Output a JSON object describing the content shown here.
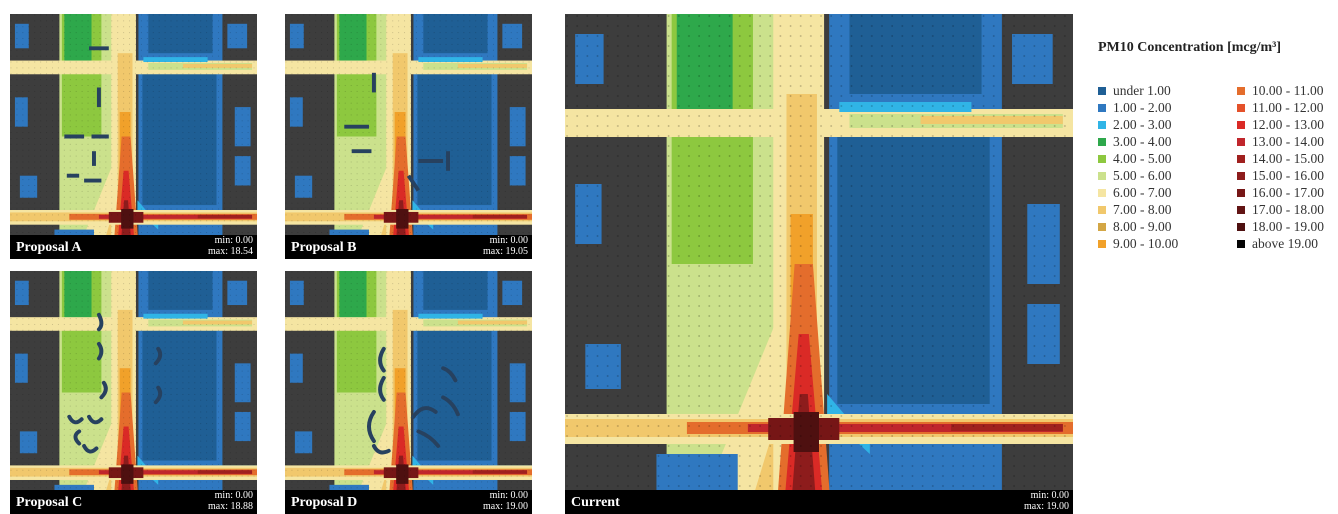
{
  "legend": {
    "title": "PM10 Concentration [mcg/m³]",
    "items": [
      {
        "label": "under 1.00",
        "color": "#1f5f95"
      },
      {
        "label": "1.00 - 2.00",
        "color": "#2f78c0"
      },
      {
        "label": "2.00 - 3.00",
        "color": "#30b4e6"
      },
      {
        "label": "3.00 - 4.00",
        "color": "#2ea84b"
      },
      {
        "label": "4.00 - 5.00",
        "color": "#8dc83f"
      },
      {
        "label": "5.00 - 6.00",
        "color": "#cbe18c"
      },
      {
        "label": "6.00 - 7.00",
        "color": "#f5e5a2"
      },
      {
        "label": "7.00 - 8.00",
        "color": "#f1c86c"
      },
      {
        "label": "8.00 - 9.00",
        "color": "#d3a645"
      },
      {
        "label": "9.00 - 10.00",
        "color": "#f1a12a"
      },
      {
        "label": "10.00 - 11.00",
        "color": "#e46d2c"
      },
      {
        "label": "11.00 - 12.00",
        "color": "#e4512a"
      },
      {
        "label": "12.00 - 13.00",
        "color": "#da2a26"
      },
      {
        "label": "13.00 - 14.00",
        "color": "#c0262c"
      },
      {
        "label": "14.00 - 15.00",
        "color": "#a0201e"
      },
      {
        "label": "15.00 - 16.00",
        "color": "#8d1c1c"
      },
      {
        "label": "16.00 - 17.00",
        "color": "#761616"
      },
      {
        "label": "17.00 - 18.00",
        "color": "#621414"
      },
      {
        "label": "18.00 - 19.00",
        "color": "#4e1010"
      },
      {
        "label": "above 19.00",
        "color": "#050505"
      }
    ]
  },
  "panels": {
    "a": {
      "title": "Proposal A",
      "min": "min: 0.00",
      "max": "max: 18.54"
    },
    "b": {
      "title": "Proposal B",
      "min": "min: 0.00",
      "max": "max: 19.05"
    },
    "c": {
      "title": "Proposal C",
      "min": "min: 0.00",
      "max": "max: 18.88"
    },
    "d": {
      "title": "Proposal D",
      "min": "min: 0.00",
      "max": "max: 19.00"
    },
    "current": {
      "title": "Current",
      "min": "min: 0.00",
      "max": "max: 19.00"
    }
  }
}
